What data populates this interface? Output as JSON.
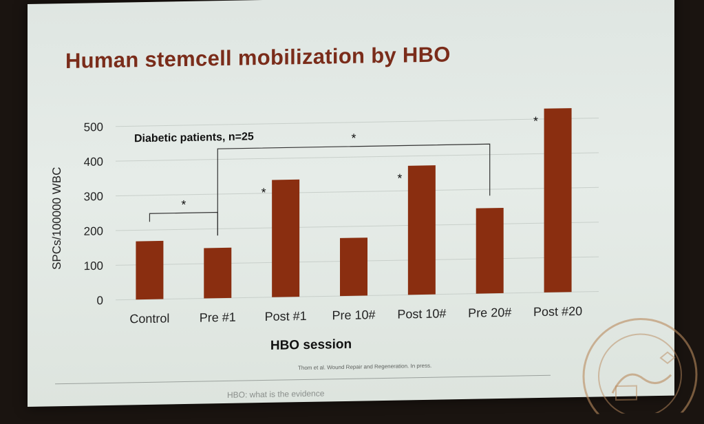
{
  "slide": {
    "title": "Human stemcell mobilization by HBO",
    "annotation": "Diabetic patients, n=25",
    "citation": "Thom et al. Wound Repair and Regeneration. In press.",
    "footer": "HBO: what is the evidence"
  },
  "colors": {
    "bar": "#8a2e10",
    "title": "#7a2c1a",
    "background": "#e2e8e4"
  },
  "chart_data": {
    "type": "bar",
    "categories": [
      "Control",
      "Pre  #1",
      "Post #1",
      "Pre 10#",
      "Post 10#",
      "Pre 20#",
      "Post #20"
    ],
    "values": [
      168,
      145,
      338,
      167,
      372,
      246,
      530
    ],
    "xlabel": "HBO session",
    "ylabel": "SPCs/100000 WBC",
    "ylim": [
      0,
      500
    ],
    "yticks": [
      0,
      100,
      200,
      300,
      400,
      500
    ],
    "grid": true,
    "legend": "none",
    "significance_markers": [
      {
        "label": "*",
        "bracket": [
          "Control",
          "Pre  #1"
        ]
      },
      {
        "label": "*",
        "bracket": [
          "Pre  #1",
          "Pre 20#"
        ]
      },
      {
        "label": "*",
        "over": "Post #1"
      },
      {
        "label": "*",
        "over": "Post 10#"
      },
      {
        "label": "*",
        "over": "Post #20"
      }
    ]
  }
}
